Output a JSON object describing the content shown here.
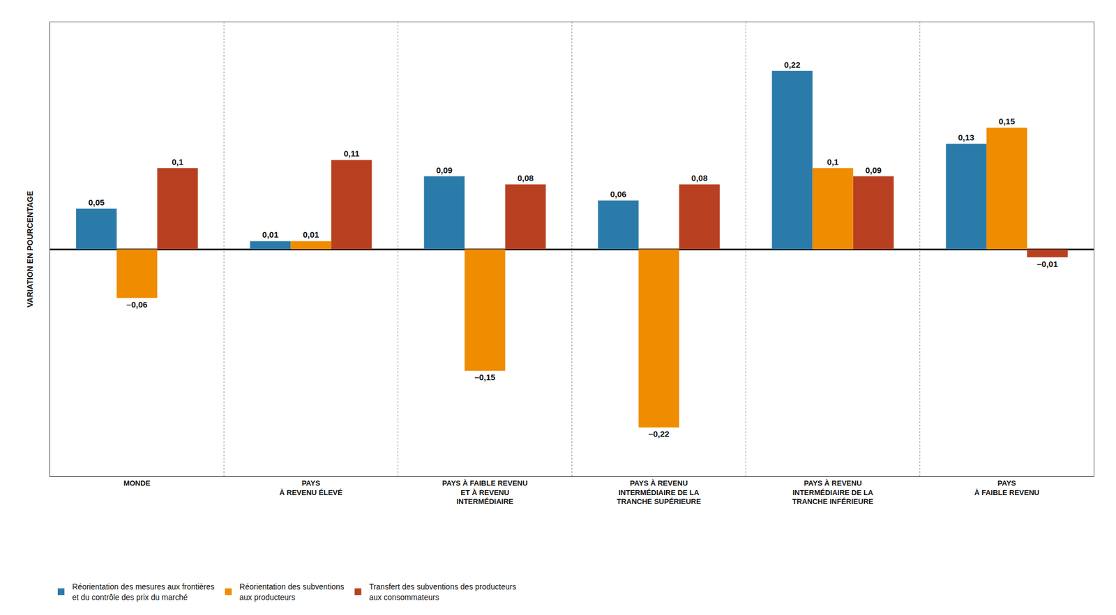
{
  "chart_data": {
    "type": "bar",
    "categories": [
      "MONDE",
      "PAYS\nÀ REVENU ÉLEVÉ",
      "PAYS À FAIBLE REVENU\nET À REVENU\nINTERMÉDIAIRE",
      "PAYS À REVENU\nINTERMÉDIAIRE DE LA\nTRANCHE SUPÉRIEURE",
      "PAYS À REVENU\nINTERMÉDIAIRE DE LA\nTRANCHE INFÉRIEURE",
      "PAYS\nÀ FAIBLE REVENU"
    ],
    "series": [
      {
        "name": "Réorientation des mesures aux frontières\net du contrôle des prix du marché",
        "color": "#2b7baa",
        "values": [
          0.05,
          0.01,
          0.09,
          0.06,
          0.22,
          0.13
        ],
        "value_labels": [
          "0,05",
          "0,01",
          "0,09",
          "0,06",
          "0,22",
          "0,13"
        ]
      },
      {
        "name": "Réorientation des subventions\naux producteurs",
        "color": "#f08c00",
        "values": [
          -0.06,
          0.01,
          -0.15,
          -0.22,
          0.1,
          0.15
        ],
        "value_labels": [
          "–0,06",
          "0,01",
          "–0,15",
          "–0,22",
          "0,1",
          "0,15"
        ]
      },
      {
        "name": "Transfert des subventions des producteurs\naux consommateurs",
        "color": "#b84020",
        "values": [
          0.1,
          0.11,
          0.08,
          0.08,
          0.09,
          -0.01
        ],
        "value_labels": [
          "0,1",
          "0,11",
          "0,08",
          "0,08",
          "0,09",
          "–0,01"
        ]
      }
    ],
    "ylim": [
      -0.28,
      0.28
    ],
    "ylabel": "VARIATION EN POURCENTAGE",
    "tick_labels": "x",
    "grid": false,
    "data_labels": true,
    "legend": "bottom"
  }
}
